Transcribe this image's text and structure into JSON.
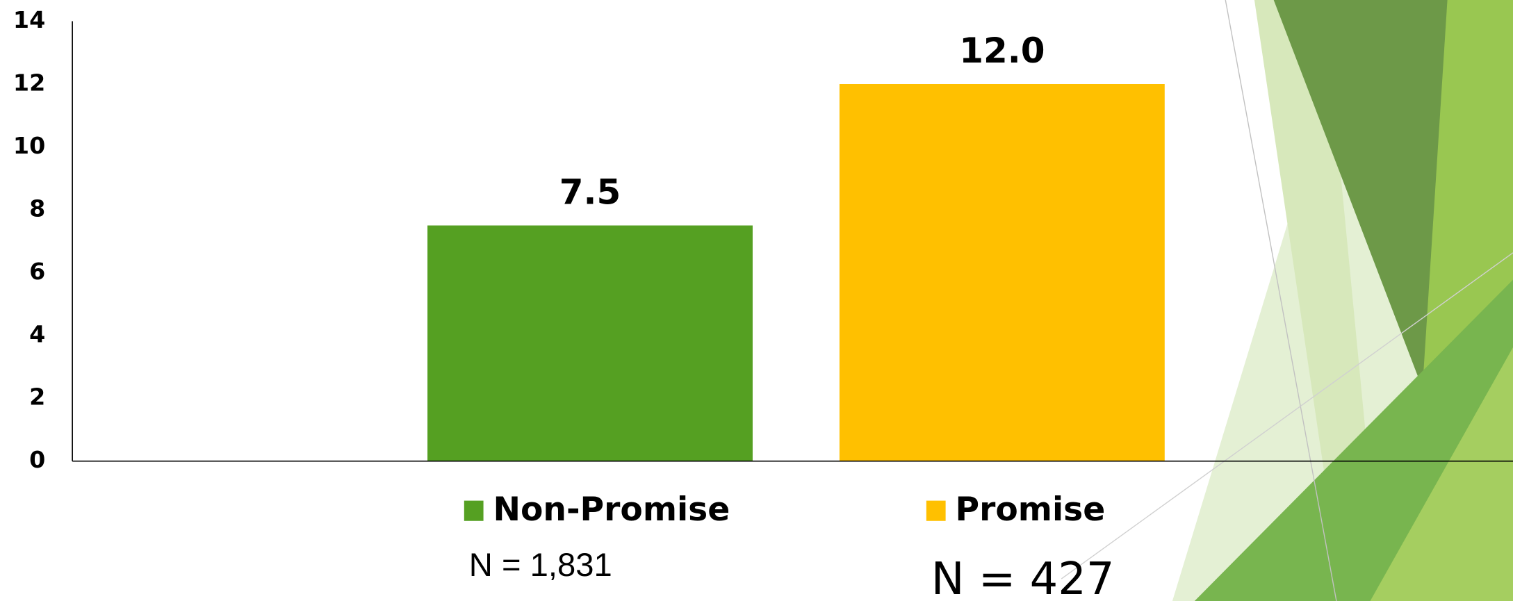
{
  "chart_data": {
    "type": "bar",
    "categories": [
      null
    ],
    "series": [
      {
        "name": "Non-Promise",
        "color": "#55a022",
        "values": [
          7.5
        ],
        "value_labels": [
          "7.5"
        ]
      },
      {
        "name": "Promise",
        "color": "#ffc000",
        "values": [
          12
        ],
        "value_labels": [
          "12.0"
        ]
      }
    ],
    "annotations": [
      "N = 1,831",
      "N = 427"
    ],
    "ylim": [
      0,
      14
    ],
    "yticks": [
      0,
      2,
      4,
      6,
      8,
      10,
      12,
      14
    ],
    "grid": false
  }
}
